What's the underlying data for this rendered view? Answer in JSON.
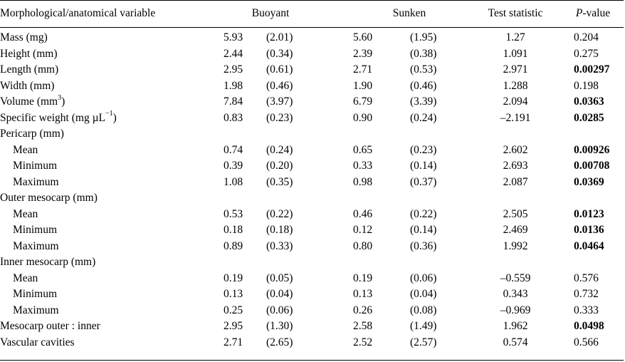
{
  "header": {
    "variable": "Morphological/anatomical variable",
    "buoyant": "Buoyant",
    "sunken": "Sunken",
    "test_statistic": "Test statistic",
    "p_prefix": "P",
    "p_suffix": "-value"
  },
  "rows": [
    {
      "label": "Mass (mg)",
      "sub": false,
      "b_mean": "5.93",
      "b_sd": "(2.01)",
      "s_mean": "5.60",
      "s_sd": "(1.95)",
      "ts": "1.27",
      "p": "0.204",
      "sig": false
    },
    {
      "label": "Height (mm)",
      "sub": false,
      "b_mean": "2.44",
      "b_sd": "(0.34)",
      "s_mean": "2.39",
      "s_sd": "(0.38)",
      "ts": "1.091",
      "p": "0.275",
      "sig": false
    },
    {
      "label": "Length (mm)",
      "sub": false,
      "b_mean": "2.95",
      "b_sd": "(0.61)",
      "s_mean": "2.71",
      "s_sd": "(0.53)",
      "ts": "2.971",
      "p": "0.00297",
      "sig": true
    },
    {
      "label": "Width (mm)",
      "sub": false,
      "b_mean": "1.98",
      "b_sd": "(0.46)",
      "s_mean": "1.90",
      "s_sd": "(0.46)",
      "ts": "1.288",
      "p": "0.198",
      "sig": false
    },
    {
      "label": "Volume (mm",
      "label_sup": "3",
      "label_tail": ")",
      "sub": false,
      "b_mean": "7.84",
      "b_sd": "(3.97)",
      "s_mean": "6.79",
      "s_sd": "(3.39)",
      "ts": "2.094",
      "p": "0.0363",
      "sig": true
    },
    {
      "label": "Specific weight (mg µL",
      "label_sup": "−1",
      "label_tail": ")",
      "sub": false,
      "b_mean": "0.83",
      "b_sd": "(0.23)",
      "s_mean": "0.90",
      "s_sd": "(0.24)",
      "ts": "–2.191",
      "p": "0.0285",
      "sig": true
    },
    {
      "label": "Pericarp (mm)",
      "sub": false,
      "b_mean": "",
      "b_sd": "",
      "s_mean": "",
      "s_sd": "",
      "ts": "",
      "p": "",
      "sig": false
    },
    {
      "label": "Mean",
      "sub": true,
      "b_mean": "0.74",
      "b_sd": "(0.24)",
      "s_mean": "0.65",
      "s_sd": "(0.23)",
      "ts": "2.602",
      "p": "0.00926",
      "sig": true
    },
    {
      "label": "Minimum",
      "sub": true,
      "b_mean": "0.39",
      "b_sd": "(0.20)",
      "s_mean": "0.33",
      "s_sd": "(0.14)",
      "ts": "2.693",
      "p": "0.00708",
      "sig": true
    },
    {
      "label": "Maximum",
      "sub": true,
      "b_mean": "1.08",
      "b_sd": "(0.35)",
      "s_mean": "0.98",
      "s_sd": "(0.37)",
      "ts": "2.087",
      "p": "0.0369",
      "sig": true
    },
    {
      "label": "Outer mesocarp (mm)",
      "sub": false,
      "b_mean": "",
      "b_sd": "",
      "s_mean": "",
      "s_sd": "",
      "ts": "",
      "p": "",
      "sig": false
    },
    {
      "label": "Mean",
      "sub": true,
      "b_mean": "0.53",
      "b_sd": "(0.22)",
      "s_mean": "0.46",
      "s_sd": "(0.22)",
      "ts": "2.505",
      "p": "0.0123",
      "sig": true
    },
    {
      "label": "Minimum",
      "sub": true,
      "b_mean": "0.18",
      "b_sd": "(0.18)",
      "s_mean": "0.12",
      "s_sd": "(0.14)",
      "ts": "2.469",
      "p": "0.0136",
      "sig": true
    },
    {
      "label": "Maximum",
      "sub": true,
      "b_mean": "0.89",
      "b_sd": "(0.33)",
      "s_mean": "0.80",
      "s_sd": "(0.36)",
      "ts": "1.992",
      "p": "0.0464",
      "sig": true
    },
    {
      "label": "Inner mesocarp (mm)",
      "sub": false,
      "b_mean": "",
      "b_sd": "",
      "s_mean": "",
      "s_sd": "",
      "ts": "",
      "p": "",
      "sig": false
    },
    {
      "label": "Mean",
      "sub": true,
      "b_mean": "0.19",
      "b_sd": "(0.05)",
      "s_mean": "0.19",
      "s_sd": "(0.06)",
      "ts": "–0.559",
      "p": "0.576",
      "sig": false
    },
    {
      "label": "Minimum",
      "sub": true,
      "b_mean": "0.13",
      "b_sd": "(0.04)",
      "s_mean": "0.13",
      "s_sd": "(0.04)",
      "ts": "0.343",
      "p": "0.732",
      "sig": false
    },
    {
      "label": "Maximum",
      "sub": true,
      "b_mean": "0.25",
      "b_sd": "(0.06)",
      "s_mean": "0.26",
      "s_sd": "(0.08)",
      "ts": "–0.969",
      "p": "0.333",
      "sig": false
    },
    {
      "label": "Mesocarp outer : inner",
      "sub": false,
      "b_mean": "2.95",
      "b_sd": "(1.30)",
      "s_mean": "2.58",
      "s_sd": "(1.49)",
      "ts": "1.962",
      "p": "0.0498",
      "sig": true
    },
    {
      "label": "Vascular cavities",
      "sub": false,
      "b_mean": "2.71",
      "b_sd": "(2.65)",
      "s_mean": "2.52",
      "s_sd": "(2.57)",
      "ts": "0.574",
      "p": "0.566",
      "sig": false
    }
  ]
}
